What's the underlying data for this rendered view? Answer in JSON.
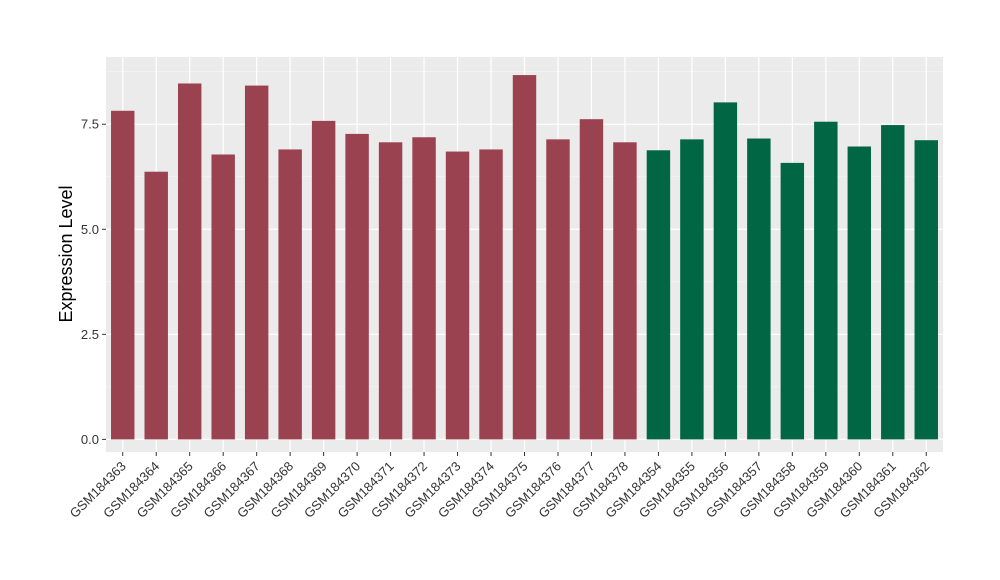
{
  "chart_data": {
    "type": "bar",
    "title": "",
    "xlabel": "",
    "ylabel": "Expression Level",
    "ylim": [
      -0.3,
      9.1
    ],
    "yticks": [
      "0.0",
      "2.5",
      "5.0",
      "7.5"
    ],
    "ytick_values": [
      0,
      2.5,
      5.0,
      7.5
    ],
    "grid": true,
    "legend": "none",
    "background_color": "#EBEBEB",
    "categories": [
      "GSM184363",
      "GSM184364",
      "GSM184365",
      "GSM184366",
      "GSM184367",
      "GSM184368",
      "GSM184369",
      "GSM184370",
      "GSM184371",
      "GSM184372",
      "GSM184373",
      "GSM184374",
      "GSM184375",
      "GSM184376",
      "GSM184377",
      "GSM184378",
      "GSM184354",
      "GSM184355",
      "GSM184356",
      "GSM184357",
      "GSM184358",
      "GSM184359",
      "GSM184360",
      "GSM184361",
      "GSM184362"
    ],
    "values": [
      7.82,
      6.37,
      8.47,
      6.78,
      8.42,
      6.9,
      7.58,
      7.27,
      7.07,
      7.19,
      6.85,
      6.9,
      8.67,
      7.14,
      7.62,
      7.07,
      6.88,
      7.14,
      8.02,
      7.16,
      6.58,
      7.56,
      6.97,
      7.48,
      7.12
    ],
    "groups": [
      "a",
      "a",
      "a",
      "a",
      "a",
      "a",
      "a",
      "a",
      "a",
      "a",
      "a",
      "a",
      "a",
      "a",
      "a",
      "a",
      "b",
      "b",
      "b",
      "b",
      "b",
      "b",
      "b",
      "b",
      "b"
    ],
    "group_colors": {
      "a": "#9A4250",
      "b": "#006644"
    }
  }
}
